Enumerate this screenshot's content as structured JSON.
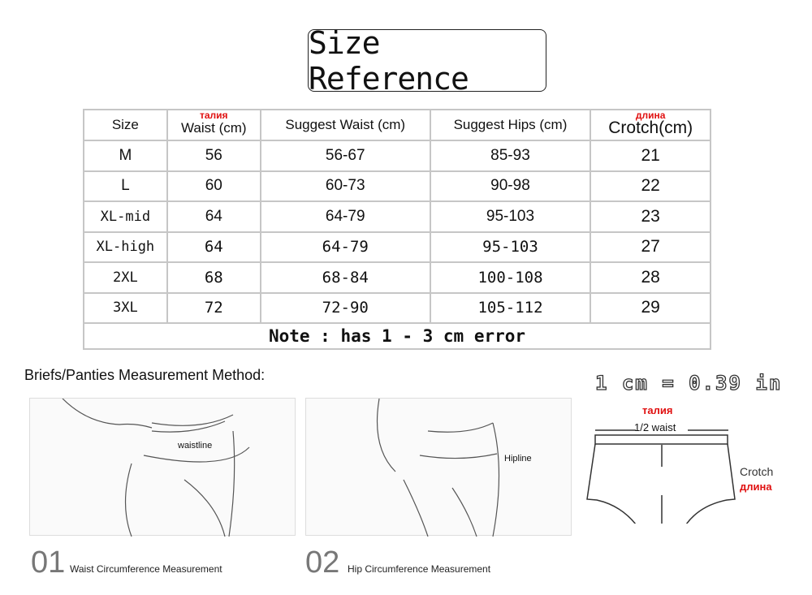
{
  "title": "Size Reference",
  "table": {
    "headers": [
      "Size",
      "Waist (cm)",
      "Suggest Waist (cm)",
      "Suggest Hips (cm)",
      "Crotch(cm)"
    ],
    "header_ru": {
      "waist": "талия",
      "crotch": "длина"
    },
    "rows": [
      [
        "M",
        "56",
        "56-67",
        "85-93",
        "21"
      ],
      [
        "L",
        "60",
        "60-73",
        "90-98",
        "22"
      ],
      [
        "XL-mid",
        "64",
        "64-79",
        "95-103",
        "23"
      ],
      [
        "XL-high",
        "64",
        "64-79",
        "95-103",
        "27"
      ],
      [
        "2XL",
        "68",
        "68-84",
        "100-108",
        "28"
      ],
      [
        "3XL",
        "72",
        "72-90",
        "105-112",
        "29"
      ]
    ],
    "note": "Note : has 1 - 3 cm error"
  },
  "method_title": "Briefs/Panties  Measurement  Method:",
  "conversion": "1 cm = 0.39 in",
  "panels": [
    {
      "num": "01",
      "caption": "Waist Circumference Measurement",
      "label": "waistline"
    },
    {
      "num": "02",
      "caption": "Hip Circumference Measurement",
      "label": "Hipline"
    }
  ],
  "diagram": {
    "waist_ru": "талия",
    "half_waist": "1/2 waist",
    "crotch": "Crotch",
    "crotch_ru": "длина"
  },
  "colors": {
    "russian_label": "#e01010",
    "grid": "#c6c6c6"
  }
}
